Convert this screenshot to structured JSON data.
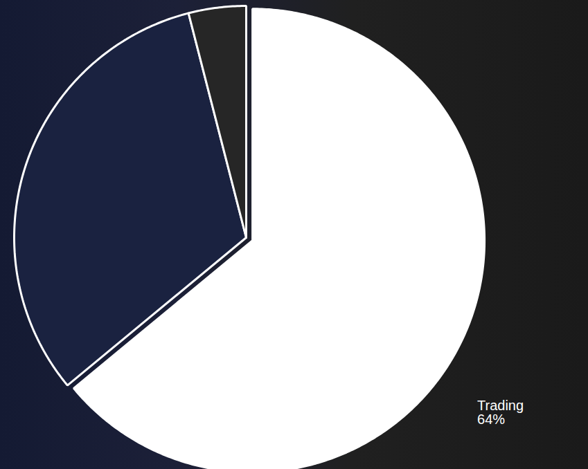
{
  "chart_data": {
    "type": "pie",
    "categories": [
      "Trading",
      null,
      null
    ],
    "values": [
      64,
      32,
      4
    ],
    "colors": [
      "#ffffff",
      "#1a2240",
      "#262626"
    ],
    "data_labels": true,
    "value_labels": [
      "64%",
      null,
      null
    ]
  }
}
